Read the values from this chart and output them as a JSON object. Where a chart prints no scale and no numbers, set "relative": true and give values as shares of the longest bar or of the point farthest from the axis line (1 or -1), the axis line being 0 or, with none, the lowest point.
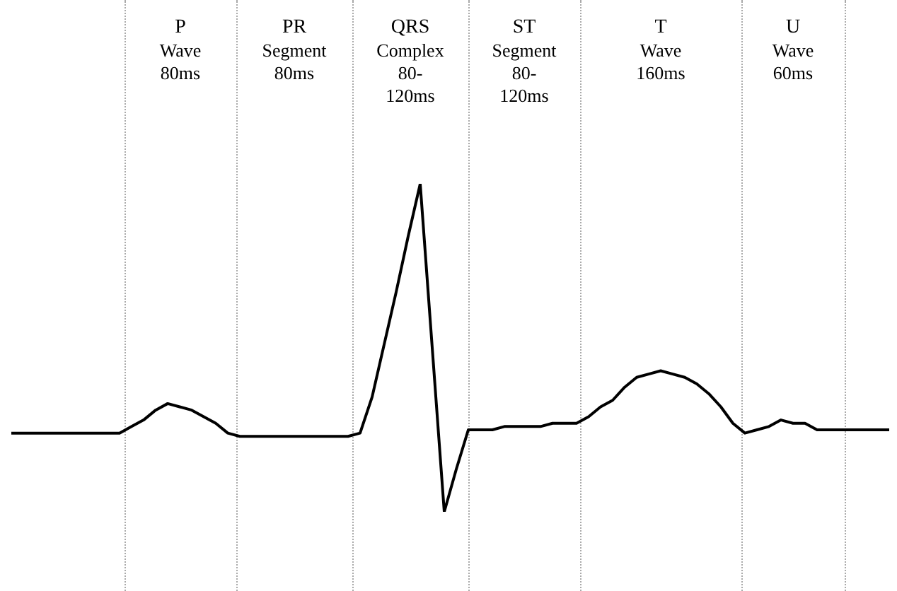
{
  "chart_data": {
    "type": "line",
    "relative": true,
    "marker": "none",
    "line_style": "solid",
    "categories": [
      null,
      null,
      null,
      null,
      null,
      null,
      null,
      null,
      null,
      null,
      null,
      null,
      null,
      null,
      null,
      null,
      null,
      null,
      null,
      null,
      null,
      null,
      null,
      null,
      null,
      null,
      null,
      null,
      null,
      null,
      null,
      null,
      null,
      null,
      null,
      null,
      null,
      null,
      null,
      null,
      null,
      null,
      null,
      null,
      null,
      null,
      null,
      null,
      null,
      null,
      null,
      null,
      null,
      null,
      null,
      null,
      null,
      null,
      null,
      null,
      null,
      null,
      null,
      null,
      null,
      null,
      null,
      null,
      null,
      null,
      null,
      null,
      null,
      null
    ],
    "series": [
      {
        "color": "#000000",
        "values": [
          0.24,
          0.24,
          0.24,
          0.24,
          0.24,
          0.24,
          0.24,
          0.24,
          0.24,
          0.24,
          0.26,
          0.28,
          0.31,
          0.33,
          0.32,
          0.31,
          0.29,
          0.27,
          0.24,
          0.23,
          0.23,
          0.23,
          0.23,
          0.23,
          0.23,
          0.23,
          0.23,
          0.23,
          0.23,
          0.24,
          0.35,
          0.51,
          0.67,
          0.84,
          1,
          0.5,
          0,
          0.13,
          0.25,
          0.25,
          0.25,
          0.26,
          0.26,
          0.26,
          0.26,
          0.27,
          0.27,
          0.27,
          0.29,
          0.32,
          0.34,
          0.38,
          0.41,
          0.42,
          0.43,
          0.42,
          0.41,
          0.39,
          0.36,
          0.32,
          0.27,
          0.24,
          0.25,
          0.26,
          0.28,
          0.27,
          0.27,
          0.25,
          0.25,
          0.25,
          0.25,
          0.25,
          0.25,
          0.25
        ]
      }
    ],
    "annotations": [
      "P\nWave\n80ms",
      "PR\nSegment\n80ms",
      "QRS\nComplex\n80-\n120ms",
      "ST\nSegment\n80-\n120ms",
      "T\nWave\n160ms",
      "U\nWave\n60ms"
    ]
  }
}
